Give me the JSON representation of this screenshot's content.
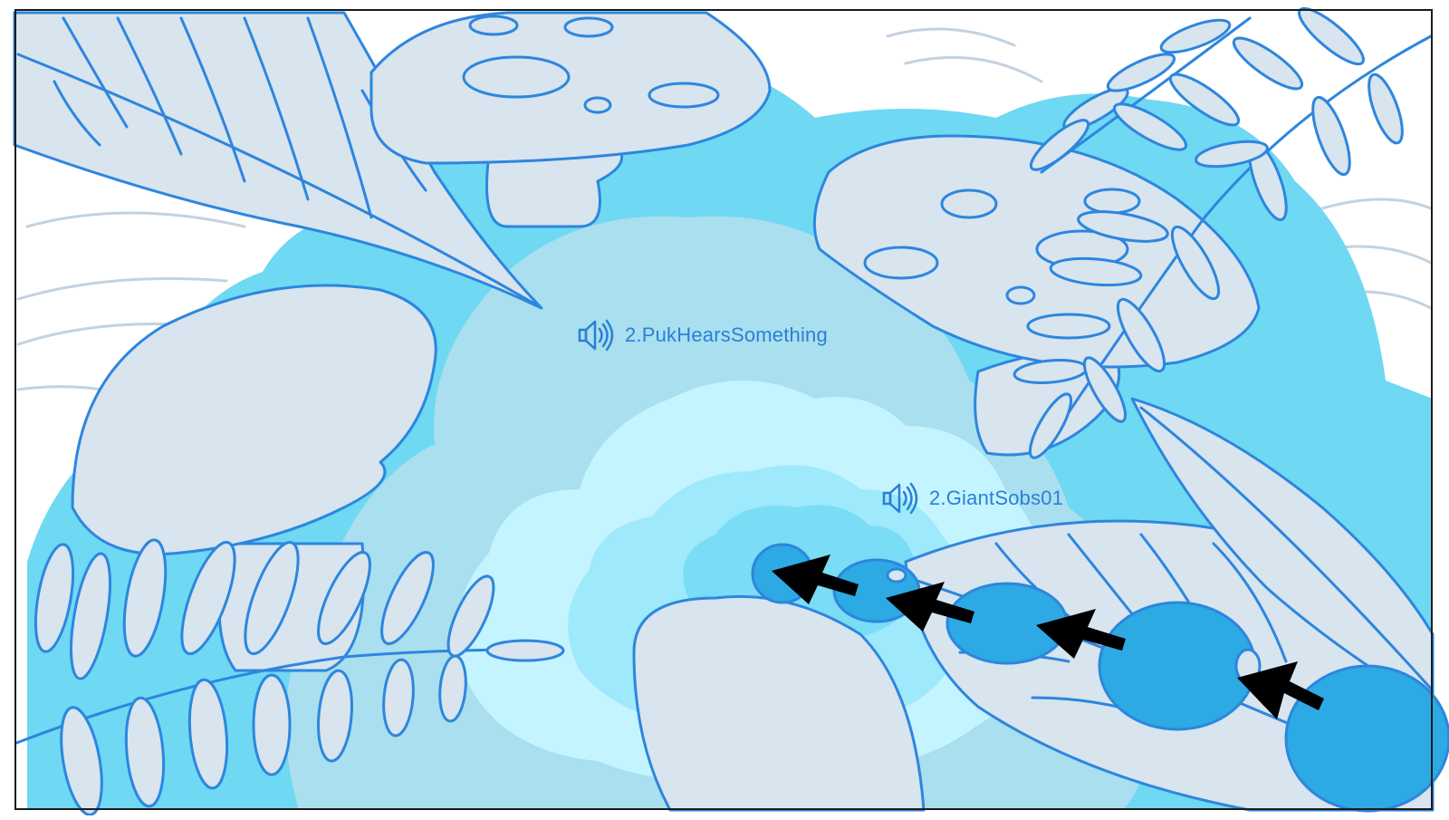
{
  "scene": {
    "colors": {
      "background": "#ffffff",
      "sky_outer": "#6fd8f3",
      "sky_mid": "#a9dfee",
      "glow_outer": "#c4f4ff",
      "glow_mid": "#9ee9fb",
      "glow_inner": "#7adcf5",
      "outline": "#2d86de",
      "fill": "#d8e4ee",
      "drop": "#2da9e3",
      "arrow": "#000000",
      "faint_lines": "#c3d2e1"
    },
    "description_icons": [
      "mushroom-icon",
      "leaf-icon",
      "fern-icon",
      "teardrop-icon",
      "arrow-icon"
    ]
  },
  "audio_cues": [
    {
      "label": "2.PukHearsSomething",
      "icon": "speaker-icon"
    },
    {
      "label": "2.GiantSobs01",
      "icon": "speaker-icon"
    }
  ]
}
